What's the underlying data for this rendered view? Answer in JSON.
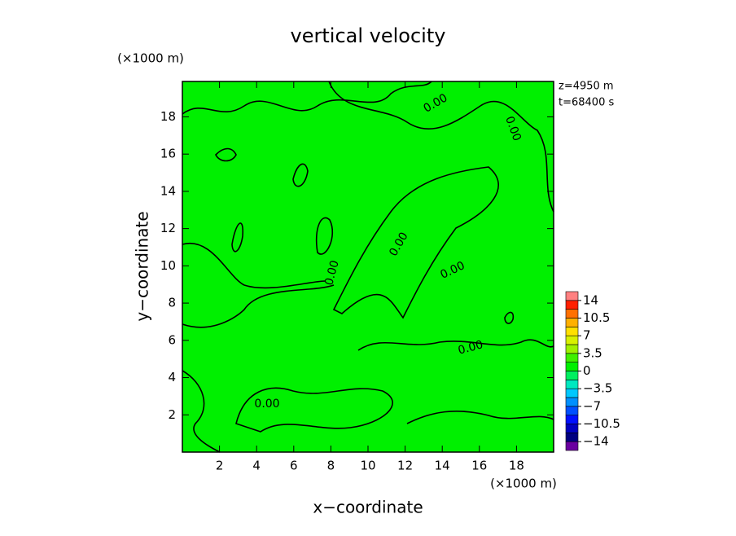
{
  "chart_data": {
    "type": "contour",
    "title": "vertical velocity",
    "xlabel": "x−coordinate",
    "ylabel": "y−coordinate",
    "x_unit": "(×1000 m)",
    "y_unit": "(×1000 m)",
    "annotations": [
      "z=4950 m",
      "t=68400 s"
    ],
    "xlim": [
      0,
      20
    ],
    "ylim": [
      0,
      19.9
    ],
    "xticks": [
      2,
      4,
      6,
      8,
      10,
      12,
      14,
      16,
      18
    ],
    "yticks": [
      2,
      4,
      6,
      8,
      10,
      12,
      14,
      16,
      18
    ],
    "field_color": "#00f000",
    "line_color": "#000000",
    "contour_level": 0,
    "contour_labels": [
      "0.00",
      "0.00",
      "0.00",
      "0.00",
      "0.00",
      "0.00",
      "0.00"
    ],
    "colorbar": {
      "lim": [
        -15.75,
        15.75
      ],
      "ticks": [
        14,
        {
          "value": 10.5,
          "label": "10.5"
        },
        7,
        {
          "value": 3.5,
          "label": "3.5"
        },
        0,
        {
          "value": -3.5,
          "label": "−3.5"
        },
        {
          "value": -7,
          "label": "−7"
        },
        {
          "value": -10.5,
          "label": "−10.5"
        },
        {
          "value": -14,
          "label": "−14"
        }
      ],
      "colors": [
        "#6a00a0",
        "#000080",
        "#0000c0",
        "#0010ff",
        "#0050ff",
        "#0090ff",
        "#00c8ff",
        "#00e8c0",
        "#00f060",
        "#00f000",
        "#40f000",
        "#a0f000",
        "#d8f000",
        "#ffe000",
        "#ffb000",
        "#ff7000",
        "#ff2000",
        "#ff8080"
      ]
    }
  }
}
